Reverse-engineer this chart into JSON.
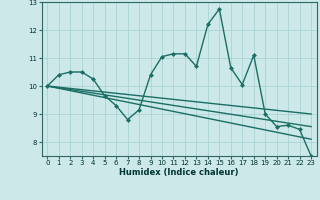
{
  "xlabel": "Humidex (Indice chaleur)",
  "bg_color": "#cce8e8",
  "grid_color": "#aad4d4",
  "line_color": "#1a6e64",
  "xlim": [
    -0.5,
    23.5
  ],
  "ylim": [
    7.5,
    13.0
  ],
  "xticks": [
    0,
    1,
    2,
    3,
    4,
    5,
    6,
    7,
    8,
    9,
    10,
    11,
    12,
    13,
    14,
    15,
    16,
    17,
    18,
    19,
    20,
    21,
    22,
    23
  ],
  "yticks": [
    8,
    9,
    10,
    11,
    12,
    13
  ],
  "series1_x": [
    0,
    1,
    2,
    3,
    4,
    5,
    6,
    7,
    8,
    9,
    10,
    11,
    12,
    13,
    14,
    15,
    16,
    17,
    18,
    19,
    20,
    21,
    22,
    23
  ],
  "series1_y": [
    10.0,
    10.4,
    10.5,
    10.5,
    10.25,
    9.65,
    9.3,
    8.8,
    9.15,
    10.4,
    11.05,
    11.15,
    11.15,
    10.7,
    12.2,
    12.75,
    10.65,
    10.05,
    11.1,
    9.0,
    8.55,
    8.6,
    8.45,
    7.5
  ],
  "line2_x": [
    0,
    23
  ],
  "line2_y": [
    10.0,
    9.0
  ],
  "line3_x": [
    0,
    23
  ],
  "line3_y": [
    10.0,
    8.55
  ],
  "line4_x": [
    0,
    23
  ],
  "line4_y": [
    10.0,
    8.1
  ],
  "marker_size": 2.5,
  "line_width": 1.0
}
